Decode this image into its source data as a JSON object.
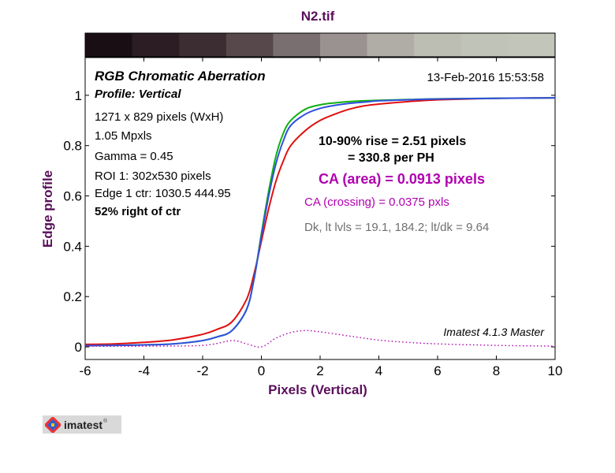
{
  "colors": {
    "title": "#5a0f5a",
    "axis_label": "#5a0f5a",
    "red": "#e01010",
    "green": "#10b010",
    "blue": "#3050e0",
    "ca": "#b000b0",
    "gray_text": "#707070",
    "text": "#000000"
  },
  "annotations": {
    "heading": "RGB Chromatic Aberration",
    "profile": "Profile: Vertical",
    "date": "13-Feb-2016 15:53:58",
    "size": "1271 x 829 pixels (WxH)",
    "mpxls": "1.05 Mpxls",
    "gamma": "Gamma = 0.45",
    "roi": "ROI 1: 302x530 pixels",
    "edge_ctr": "Edge 1 ctr: 1030.5  444.95",
    "right_of_ctr": "52% right of ctr",
    "rise": "10-90% rise = 2.51 pixels",
    "per_ph": "= 330.8 per PH",
    "ca_area": "CA (area) = 0.0913 pixels",
    "ca_crossing": "CA (crossing) = 0.0375 pxls",
    "levels": "Dk, lt lvls = 19.1, 184.2;  lt/dk = 9.64",
    "version": "Imatest 4.1.3  Master"
  },
  "logo": {
    "text": "imatest",
    "mark": "®"
  },
  "chart_data": {
    "type": "line",
    "title": "N2.tif",
    "xlabel": "Pixels (Vertical)",
    "ylabel": "Edge profile",
    "xlim": [
      -6,
      10
    ],
    "ylim": [
      -0.05,
      1.15
    ],
    "xticks": [
      -6,
      -4,
      -2,
      0,
      2,
      4,
      6,
      8,
      10
    ],
    "yticks": [
      0,
      0.2,
      0.4,
      0.6,
      0.8,
      1
    ],
    "ytick_labels": [
      "0",
      "0.2",
      "0.4",
      "0.6",
      "0.8",
      "1"
    ],
    "grid": false,
    "gradient_bar": [
      "#1a0e15",
      "#2c1d24",
      "#3c2d33",
      "#57484c",
      "#7a6f70",
      "#9a9290",
      "#b0ada6",
      "#bcbdb3",
      "#c0c3b8",
      "#c2c5ba"
    ],
    "series": [
      {
        "color": "red",
        "x": [
          -6,
          -5,
          -4,
          -3,
          -2,
          -1.5,
          -1,
          -0.5,
          -0.25,
          0,
          0.25,
          0.5,
          0.75,
          1,
          1.5,
          2,
          2.5,
          3,
          3.5,
          4,
          5,
          6,
          8,
          10
        ],
        "y": [
          0.01,
          0.012,
          0.018,
          0.028,
          0.05,
          0.07,
          0.1,
          0.19,
          0.29,
          0.42,
          0.55,
          0.66,
          0.74,
          0.8,
          0.86,
          0.9,
          0.925,
          0.945,
          0.958,
          0.965,
          0.975,
          0.982,
          0.988,
          0.99
        ]
      },
      {
        "color": "green",
        "x": [
          -6,
          -5,
          -4,
          -3,
          -2,
          -1.5,
          -1,
          -0.5,
          -0.25,
          0,
          0.25,
          0.5,
          0.75,
          1,
          1.5,
          2,
          2.5,
          3,
          3.5,
          4,
          5,
          6,
          8,
          10
        ],
        "y": [
          0.005,
          0.006,
          0.008,
          0.012,
          0.025,
          0.04,
          0.065,
          0.15,
          0.27,
          0.45,
          0.62,
          0.76,
          0.85,
          0.9,
          0.945,
          0.962,
          0.97,
          0.975,
          0.978,
          0.98,
          0.983,
          0.986,
          0.988,
          0.99
        ]
      },
      {
        "color": "blue",
        "x": [
          -6,
          -5,
          -4,
          -3,
          -2,
          -1.5,
          -1,
          -0.5,
          -0.25,
          0,
          0.25,
          0.5,
          0.75,
          1,
          1.5,
          2,
          2.5,
          3,
          3.5,
          4,
          5,
          6,
          8,
          10
        ],
        "y": [
          0.005,
          0.006,
          0.008,
          0.012,
          0.025,
          0.04,
          0.065,
          0.15,
          0.27,
          0.44,
          0.6,
          0.73,
          0.82,
          0.88,
          0.925,
          0.948,
          0.96,
          0.968,
          0.973,
          0.978,
          0.982,
          0.985,
          0.988,
          0.99
        ]
      },
      {
        "color": "ca",
        "dotted": true,
        "x": [
          -6,
          -4,
          -2,
          -1,
          -0.5,
          0,
          0.5,
          1,
          1.5,
          2,
          3,
          4,
          5,
          6,
          8,
          10
        ],
        "y": [
          0.003,
          0.003,
          0.006,
          0.025,
          0.012,
          0.0,
          0.035,
          0.057,
          0.065,
          0.06,
          0.043,
          0.027,
          0.018,
          0.012,
          0.006,
          0.003
        ]
      }
    ]
  }
}
